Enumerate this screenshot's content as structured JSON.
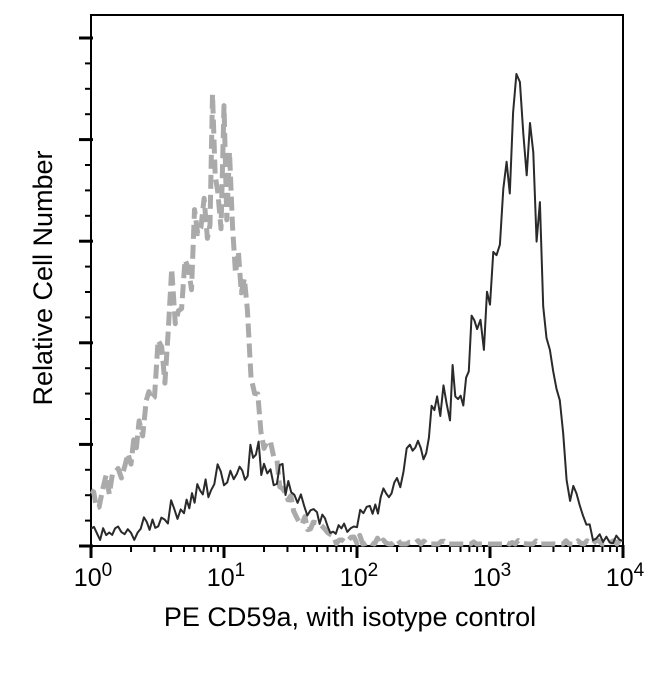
{
  "chart_data": {
    "type": "line",
    "title": "",
    "xlabel": "PE CD59a, with isotype control",
    "ylabel": "Relative Cell Number",
    "x_scale": "log",
    "xlim": [
      1,
      10000
    ],
    "ylim": [
      0,
      100
    ],
    "grid": false,
    "legend": "none",
    "x_ticks": [
      {
        "value": 1,
        "base": "10",
        "exp": "0"
      },
      {
        "value": 10,
        "base": "10",
        "exp": "1"
      },
      {
        "value": 100,
        "base": "10",
        "exp": "2"
      },
      {
        "value": 1000,
        "base": "10",
        "exp": "3"
      },
      {
        "value": 10000,
        "base": "10",
        "exp": "4"
      }
    ],
    "series": [
      {
        "style": "dashed",
        "color": "#aaaaaa",
        "x": [
          1,
          1.15,
          1.3,
          1.45,
          1.6,
          1.8,
          2.0,
          2.3,
          2.6,
          3.0,
          3.4,
          3.8,
          4.3,
          4.8,
          5.4,
          6.0,
          6.7,
          7.5,
          8.2,
          9.0,
          10.0,
          11.0,
          12.2,
          13.5,
          15.0,
          17.0,
          20.0,
          25.0,
          35.0,
          60.0,
          150.0,
          500.0,
          2000.0,
          10000.0
        ],
        "values": [
          11,
          9,
          14,
          12,
          16,
          14,
          20,
          23,
          28,
          36,
          33,
          43,
          50,
          46,
          60,
          56,
          70,
          65,
          81,
          74,
          75,
          68,
          60,
          52,
          44,
          34,
          24,
          14,
          6,
          2,
          0.4,
          0.2,
          0.2,
          0.2
        ]
      },
      {
        "style": "solid",
        "color": "#2a2a2a",
        "x": [
          1,
          1.3,
          1.6,
          2.0,
          2.5,
          3.2,
          4.0,
          5.0,
          6.3,
          8.0,
          10.0,
          12.5,
          15.8,
          20.0,
          25.0,
          32.0,
          40.0,
          50.0,
          63.0,
          80.0,
          100.0,
          125.0,
          158.0,
          200.0,
          250.0,
          316.0,
          400.0,
          500.0,
          630.0,
          800.0,
          900.0,
          1000.0,
          1120.0,
          1260.0,
          1410.0,
          1580.0,
          1780.0,
          2000.0,
          2240.0,
          2510.0,
          2820.0,
          3160.0,
          3550.0,
          4000.0,
          4470.0,
          5010.0,
          5620.0,
          6300.0,
          7080.0,
          7940.0,
          8900.0,
          10000.0
        ],
        "values": [
          3,
          2,
          3,
          2,
          4,
          5,
          7,
          8,
          10,
          12,
          15,
          15,
          18,
          17,
          15,
          12,
          8,
          5,
          4,
          3,
          5,
          7,
          9,
          13,
          18,
          21,
          25,
          30,
          34,
          41,
          47,
          55,
          62,
          70,
          78,
          88,
          96,
          84,
          74,
          56,
          42,
          29,
          19,
          12,
          8,
          5,
          3,
          2,
          2,
          1,
          1,
          1
        ]
      }
    ]
  }
}
